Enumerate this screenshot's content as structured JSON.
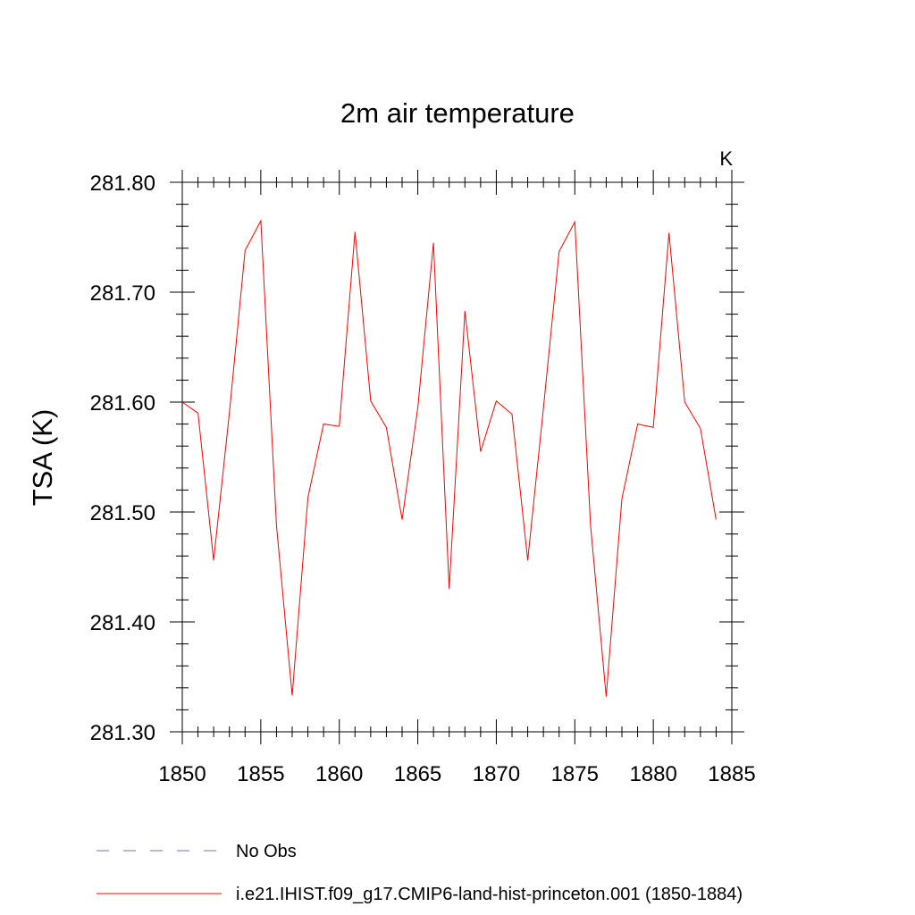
{
  "chart_data": {
    "type": "line",
    "title": "2m air temperature",
    "units_label": "K",
    "ylabel": "TSA  (K)",
    "xlabel": "",
    "xlim": [
      1850,
      1885
    ],
    "ylim": [
      281.3,
      281.8
    ],
    "x_ticks": [
      "1850",
      "1855",
      "1860",
      "1865",
      "1870",
      "1875",
      "1880",
      "1885"
    ],
    "y_ticks": [
      "281.30",
      "281.40",
      "281.50",
      "281.60",
      "281.70",
      "281.80"
    ],
    "grid": false,
    "legend_position": "bottom",
    "series": [
      {
        "name": "i.e21.IHIST.f09_g17.CMIP6-land-hist-princeton.001 (1850-1884)",
        "color": "#ff0000",
        "style": "solid",
        "x": [
          1850,
          1851,
          1852,
          1853,
          1854,
          1855,
          1856,
          1857,
          1858,
          1859,
          1860,
          1861,
          1862,
          1863,
          1864,
          1865,
          1866,
          1867,
          1868,
          1869,
          1870,
          1871,
          1872,
          1873,
          1874,
          1875,
          1876,
          1877,
          1878,
          1879,
          1880,
          1881,
          1882,
          1883,
          1884
        ],
        "values": [
          281.6,
          281.59,
          281.456,
          281.59,
          281.738,
          281.765,
          281.488,
          281.333,
          281.513,
          281.58,
          281.578,
          281.755,
          281.601,
          281.577,
          281.493,
          281.595,
          281.745,
          281.43,
          281.683,
          281.555,
          281.601,
          281.589,
          281.456,
          281.594,
          281.737,
          281.764,
          281.488,
          281.332,
          281.512,
          281.58,
          281.577,
          281.754,
          281.6,
          281.576,
          281.493
        ]
      }
    ],
    "legend": [
      {
        "label": "No Obs",
        "color": "#7a6fb8",
        "style": "dashed"
      },
      {
        "label": "i.e21.IHIST.f09_g17.CMIP6-land-hist-princeton.001 (1850-1884)",
        "color": "#ff0000",
        "style": "solid"
      }
    ]
  }
}
